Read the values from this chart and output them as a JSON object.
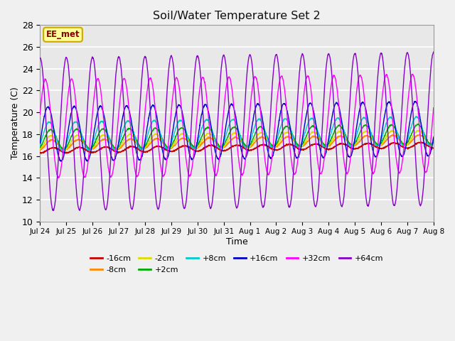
{
  "title": "Soil/Water Temperature Set 2",
  "xlabel": "Time",
  "ylabel": "Temperature (C)",
  "ylim": [
    10,
    28
  ],
  "yticks": [
    10,
    12,
    14,
    16,
    18,
    20,
    22,
    24,
    26,
    28
  ],
  "fig_bg": "#f0f0f0",
  "plot_bg": "#e8e8e8",
  "annotation_text": "EE_met",
  "annotation_color": "#8b0000",
  "annotation_bg": "#ffff99",
  "annotation_edge": "#ccaa00",
  "series": [
    {
      "label": "-16cm",
      "color": "#cc0000",
      "base": 16.5,
      "amp": 0.25,
      "phase": 0.0,
      "lag": 0.0
    },
    {
      "label": "-8cm",
      "color": "#ff8800",
      "base": 17.0,
      "amp": 0.45,
      "phase": 0.0,
      "lag": 0.05
    },
    {
      "label": "-2cm",
      "color": "#dddd00",
      "base": 17.2,
      "amp": 0.65,
      "phase": 0.0,
      "lag": 0.08
    },
    {
      "label": "+2cm",
      "color": "#00aa00",
      "base": 17.5,
      "amp": 0.9,
      "phase": 0.0,
      "lag": 0.1
    },
    {
      "label": "+8cm",
      "color": "#00cccc",
      "base": 17.8,
      "amp": 1.3,
      "phase": 0.0,
      "lag": 0.15
    },
    {
      "label": "+16cm",
      "color": "#0000cc",
      "base": 18.0,
      "amp": 2.5,
      "phase": 0.0,
      "lag": 0.2
    },
    {
      "label": "+32cm",
      "color": "#ff00ff",
      "base": 18.5,
      "amp": 4.5,
      "phase": 0.0,
      "lag": 0.3
    },
    {
      "label": "+64cm",
      "color": "#8800cc",
      "base": 18.0,
      "amp": 7.0,
      "phase": 0.0,
      "lag": 0.5
    }
  ],
  "xtick_labels": [
    "Jul 24",
    "Jul 25",
    "Jul 26",
    "Jul 27",
    "Jul 28",
    "Jul 29",
    "Jul 30",
    "Jul 31",
    "Aug 1",
    "Aug 2",
    "Aug 3",
    "Aug 4",
    "Aug 5",
    "Aug 6",
    "Aug 7",
    "Aug 8"
  ],
  "num_days": 15,
  "points_per_day": 144,
  "grid_color": "#ffffff",
  "legend_ncol_row1": 6,
  "legend_ncol_row2": 2
}
